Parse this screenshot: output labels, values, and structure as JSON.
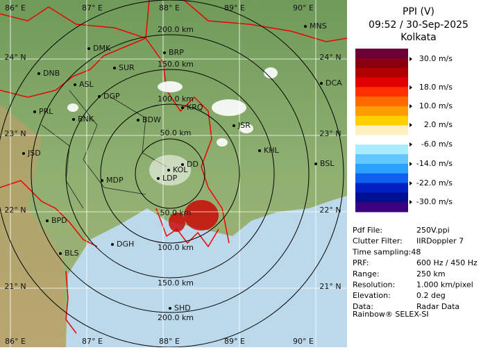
{
  "header": {
    "title": "PPI (V)",
    "time": "09:52 / 30-Sep-2025",
    "station": "Kolkata"
  },
  "legend": {
    "labels": [
      "30.0 m/s",
      "18.0 m/s",
      "10.0 m/s",
      "2.0 m/s",
      "-6.0 m/s",
      "-14.0 m/s",
      "-22.0 m/s",
      "-30.0 m/s"
    ]
  },
  "info": {
    "rows": [
      [
        "Pdf File:",
        "250V.ppi"
      ],
      [
        "Clutter Filter:",
        "IIRDoppler 7"
      ],
      [
        "Time sampling:48"
      ],
      [
        "PRF:",
        "600 Hz / 450 Hz"
      ],
      [
        "Range:",
        "250 km"
      ],
      [
        "Resolution:",
        "1.000 km/pixel"
      ],
      [
        "Elevation:",
        "0.2 deg"
      ],
      [
        "Data:",
        "Radar Data"
      ]
    ],
    "credit": "Rainbow® SELEX-SI"
  },
  "map": {
    "lon_labels": [
      "86° E",
      "87° E",
      "88° E",
      "89° E",
      "90° E"
    ],
    "lat_labels": [
      "24° N",
      "23° N",
      "22° N",
      "21° N"
    ],
    "ring_labels": [
      "200.0 km",
      "150.0 km",
      "100.0 km",
      "50.0 km",
      "50.0 km",
      "100.0 km",
      "150.0 km",
      "200.0 km"
    ],
    "cities": [
      "MNS",
      "DMK",
      "BRP",
      "DNB",
      "SUR",
      "ASL",
      "DGP",
      "DCA",
      "PRL",
      "BNK",
      "KRQ",
      "BDW",
      "JSR",
      "KHL",
      "JSD",
      "BSL",
      "DD",
      "KOL",
      "MDP",
      "LDP",
      "BPD",
      "DGH",
      "BLS",
      "SHD"
    ]
  }
}
